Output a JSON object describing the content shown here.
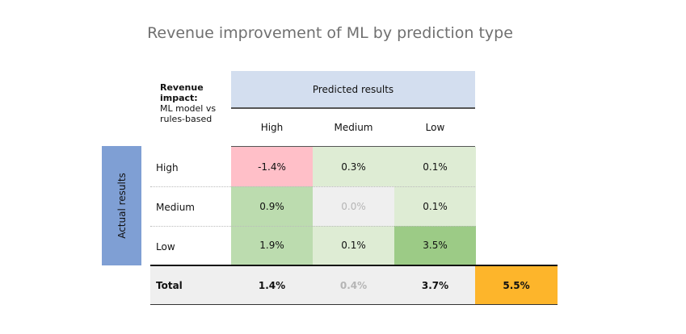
{
  "chart_data": {
    "type": "heatmap",
    "title": "Revenue improvement of ML by prediction type",
    "corner_label_bold": "Revenue impact:",
    "corner_label": "ML model vs rules-based",
    "column_group_label": "Predicted results",
    "row_group_label": "Actual results",
    "columns": [
      "High",
      "Medium",
      "Low"
    ],
    "rows": [
      "High",
      "Medium",
      "Low"
    ],
    "values": [
      [
        "-1.4%",
        "0.3%",
        "0.1%"
      ],
      [
        "0.9%",
        "0.0%",
        "0.1%"
      ],
      [
        "1.9%",
        "0.1%",
        "3.5%"
      ]
    ],
    "numeric_values": [
      [
        -1.4,
        0.3,
        0.1
      ],
      [
        0.9,
        0.0,
        0.1
      ],
      [
        1.9,
        0.1,
        3.5
      ]
    ],
    "total_label": "Total",
    "totals": [
      "1.4%",
      "0.4%",
      "3.7%"
    ],
    "grand_total": "5.5%",
    "unit": "%"
  },
  "colors": {
    "negative": "#ffbfc8",
    "neutral": "#efefef",
    "light_positive": "#deecd4",
    "mid_positive": "#bcdcaf",
    "strong_positive": "#9ccb86",
    "grand_total": "#fdb52b",
    "predicted_band": "#d3deef",
    "actual_band": "#7f9fd4"
  }
}
